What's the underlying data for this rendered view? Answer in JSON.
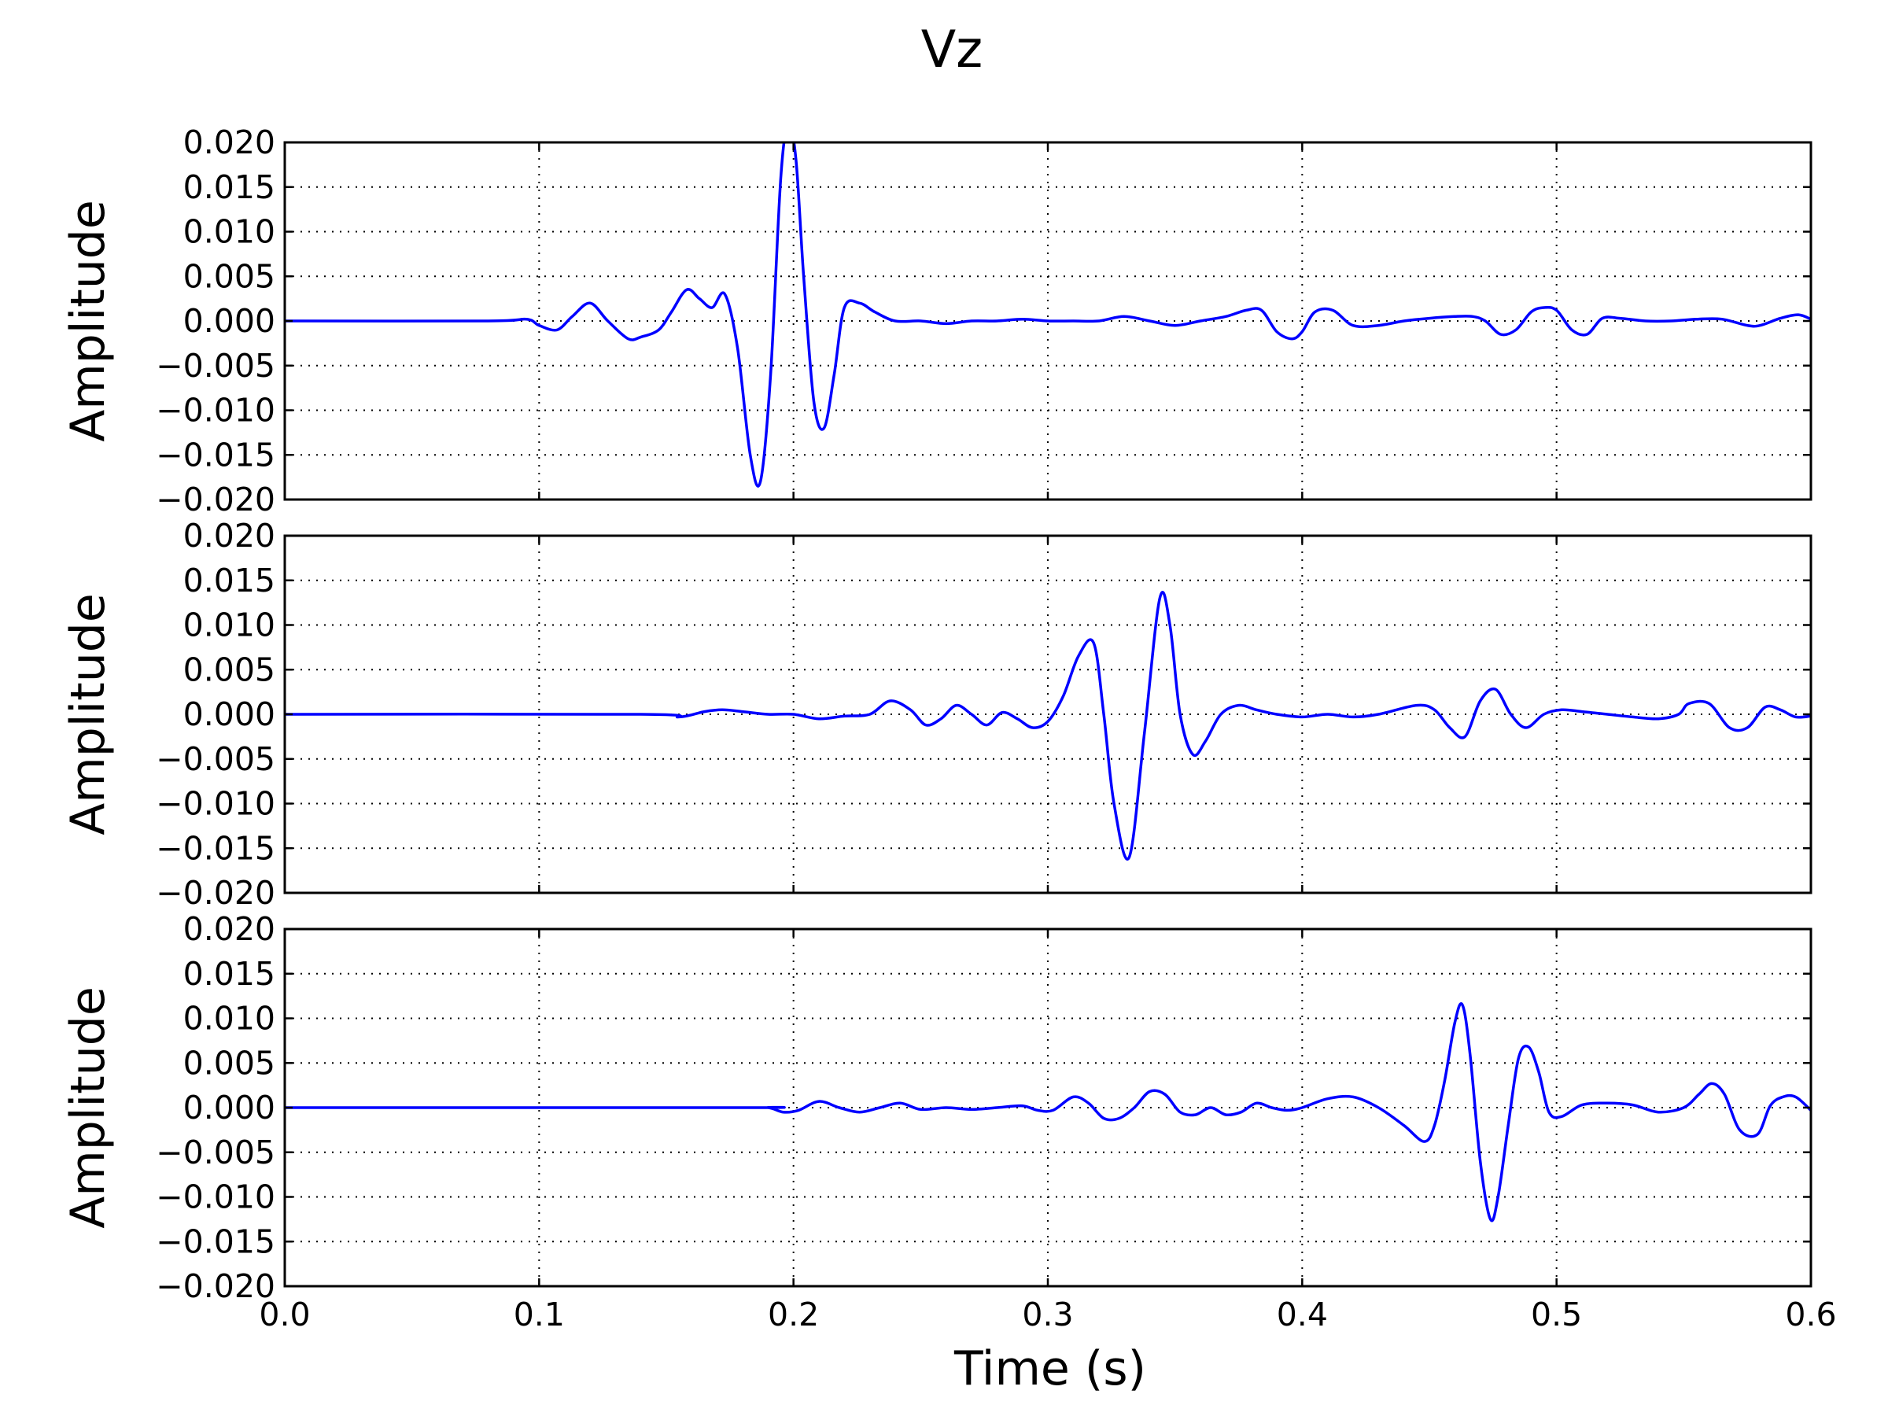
{
  "chart_data": {
    "type": "line",
    "title": "Vz",
    "xlabel": "Time (s)",
    "ylabel": "Amplitude",
    "xlim": [
      0.0,
      0.6
    ],
    "ylim": [
      -0.02,
      0.02
    ],
    "grid": true,
    "xticks": [
      "0.0",
      "0.1",
      "0.2",
      "0.3",
      "0.4",
      "0.5",
      "0.6"
    ],
    "yticks": [
      "0.020",
      "0.015",
      "0.010",
      "0.005",
      "0.000",
      "−0.005",
      "−0.010",
      "−0.015",
      "−0.020"
    ],
    "line_color": "#0000ff",
    "panels": [
      {
        "ylabel": "Amplitude",
        "x": [
          0.0,
          0.08,
          0.095,
          0.1,
          0.107,
          0.113,
          0.12,
          0.127,
          0.135,
          0.14,
          0.147,
          0.152,
          0.158,
          0.163,
          0.168,
          0.173,
          0.178,
          0.183,
          0.187,
          0.191,
          0.195,
          0.198,
          0.201,
          0.204,
          0.208,
          0.212,
          0.216,
          0.22,
          0.226,
          0.232,
          0.24,
          0.25,
          0.26,
          0.27,
          0.28,
          0.29,
          0.3,
          0.31,
          0.32,
          0.33,
          0.34,
          0.35,
          0.36,
          0.37,
          0.378,
          0.384,
          0.39,
          0.396,
          0.4,
          0.405,
          0.412,
          0.42,
          0.43,
          0.44,
          0.45,
          0.46,
          0.467,
          0.472,
          0.478,
          0.484,
          0.49,
          0.495,
          0.5,
          0.506,
          0.512,
          0.518,
          0.525,
          0.535,
          0.545,
          0.555,
          0.565,
          0.575,
          0.58,
          0.588,
          0.595,
          0.6
        ],
        "y": [
          0.0,
          0.0,
          0.0002,
          -0.0005,
          -0.001,
          0.0005,
          0.002,
          0.0,
          -0.002,
          -0.0018,
          -0.001,
          0.001,
          0.0035,
          0.0025,
          0.0015,
          0.003,
          -0.003,
          -0.015,
          -0.018,
          -0.006,
          0.016,
          0.022,
          0.018,
          0.005,
          -0.009,
          -0.012,
          -0.006,
          0.0015,
          0.002,
          0.001,
          0.0,
          0.0,
          -0.0003,
          0.0,
          0.0,
          0.0002,
          0.0,
          0.0,
          0.0,
          0.0005,
          0.0,
          -0.0005,
          0.0,
          0.0005,
          0.0012,
          0.0012,
          -0.0012,
          -0.002,
          -0.0012,
          0.001,
          0.0012,
          -0.0005,
          -0.0005,
          0.0,
          0.0003,
          0.0005,
          0.0005,
          0.0,
          -0.0015,
          -0.001,
          0.001,
          0.0015,
          0.0012,
          -0.001,
          -0.0015,
          0.0003,
          0.0003,
          0.0,
          0.0,
          0.0002,
          0.0002,
          -0.0005,
          -0.0005,
          0.0003,
          0.0007,
          0.0002
        ]
      },
      {
        "ylabel": "Amplitude",
        "x": [
          0.0,
          0.14,
          0.155,
          0.165,
          0.172,
          0.18,
          0.19,
          0.2,
          0.21,
          0.22,
          0.23,
          0.238,
          0.246,
          0.252,
          0.258,
          0.264,
          0.27,
          0.276,
          0.282,
          0.288,
          0.294,
          0.3,
          0.306,
          0.312,
          0.318,
          0.322,
          0.326,
          0.332,
          0.338,
          0.344,
          0.348,
          0.352,
          0.357,
          0.362,
          0.368,
          0.375,
          0.382,
          0.39,
          0.4,
          0.41,
          0.42,
          0.43,
          0.445,
          0.452,
          0.458,
          0.464,
          0.47,
          0.476,
          0.482,
          0.488,
          0.495,
          0.502,
          0.51,
          0.52,
          0.53,
          0.54,
          0.548,
          0.552,
          0.56,
          0.568,
          0.575,
          0.582,
          0.588,
          0.594,
          0.6
        ],
        "y": [
          0.0,
          0.0,
          -0.0003,
          0.0003,
          0.0005,
          0.0003,
          0.0,
          0.0,
          -0.0005,
          -0.0002,
          0.0,
          0.0015,
          0.0005,
          -0.0012,
          -0.0005,
          0.001,
          0.0,
          -0.0012,
          0.0002,
          -0.0005,
          -0.0015,
          -0.0008,
          0.002,
          0.0065,
          0.008,
          0.0,
          -0.01,
          -0.016,
          -0.002,
          0.013,
          0.01,
          0.0,
          -0.0045,
          -0.003,
          0.0,
          0.001,
          0.0005,
          0.0,
          -0.0003,
          0.0,
          -0.0003,
          0.0,
          0.001,
          0.0005,
          -0.0015,
          -0.0025,
          0.0015,
          0.0028,
          0.0,
          -0.0015,
          0.0,
          0.0005,
          0.0003,
          0.0,
          -0.0003,
          -0.0005,
          0.0,
          0.0012,
          0.0012,
          -0.0015,
          -0.0015,
          0.0008,
          0.0005,
          -0.0003,
          -0.0002
        ]
      },
      {
        "ylabel": "Amplitude",
        "x": [
          0.0,
          0.18,
          0.19,
          0.196,
          0.202,
          0.21,
          0.218,
          0.226,
          0.234,
          0.242,
          0.25,
          0.26,
          0.27,
          0.28,
          0.29,
          0.296,
          0.302,
          0.31,
          0.316,
          0.322,
          0.328,
          0.334,
          0.34,
          0.346,
          0.352,
          0.358,
          0.364,
          0.37,
          0.376,
          0.382,
          0.388,
          0.394,
          0.4,
          0.41,
          0.42,
          0.43,
          0.44,
          0.448,
          0.452,
          0.456,
          0.46,
          0.463,
          0.466,
          0.47,
          0.474,
          0.477,
          0.481,
          0.485,
          0.489,
          0.493,
          0.497,
          0.502,
          0.51,
          0.52,
          0.53,
          0.54,
          0.55,
          0.556,
          0.561,
          0.566,
          0.572,
          0.579,
          0.584,
          0.589,
          0.594,
          0.6
        ],
        "y": [
          0.0,
          0.0,
          0.0,
          -0.0005,
          -0.0003,
          0.0007,
          0.0,
          -0.0005,
          0.0,
          0.0005,
          -0.0002,
          0.0,
          -0.0002,
          0.0,
          0.0002,
          -0.0003,
          -0.0003,
          0.0012,
          0.0005,
          -0.0012,
          -0.0012,
          0.0,
          0.0018,
          0.0015,
          -0.0005,
          -0.0008,
          0.0,
          -0.0008,
          -0.0005,
          0.0005,
          0.0,
          -0.0003,
          0.0,
          0.001,
          0.0012,
          0.0,
          -0.002,
          -0.0038,
          -0.002,
          0.003,
          0.0095,
          0.0115,
          0.006,
          -0.006,
          -0.0125,
          -0.01,
          -0.002,
          0.0055,
          0.0068,
          0.004,
          -0.0005,
          -0.001,
          0.0003,
          0.0005,
          0.0003,
          -0.0005,
          0.0,
          0.0015,
          0.0027,
          0.0015,
          -0.0025,
          -0.003,
          0.0002,
          0.0012,
          0.0012,
          -0.0003
        ]
      }
    ]
  }
}
